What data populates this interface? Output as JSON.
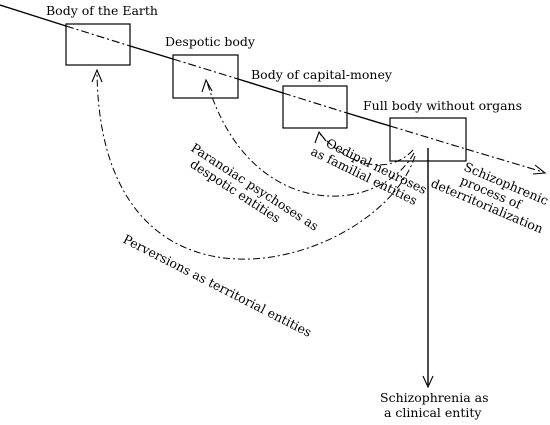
{
  "bodies": {
    "earth": "Body of the Earth",
    "despotic": "Despotic body",
    "capital": "Body of capital-money",
    "fbwo": "Full body without organs"
  },
  "curves": {
    "oedipal_line1": "Oedipal neuroses",
    "oedipal_line2": "as familial entities",
    "paranoiac_line1": "Paranoiac psychoses as",
    "paranoiac_line2": "despotic entities",
    "perversions": "Perversions as territorial entities"
  },
  "schizophrenic_process": {
    "line1": "Schizophrenic",
    "line2": "process of",
    "line3": "deterritorialization"
  },
  "clinical": {
    "line1": "Schizophrenia as",
    "line2": "a clinical entity"
  }
}
